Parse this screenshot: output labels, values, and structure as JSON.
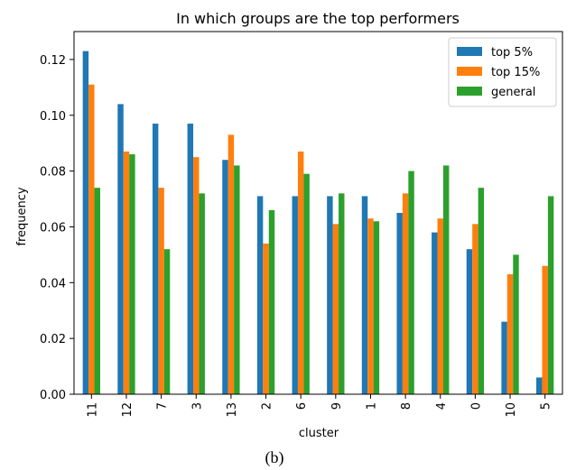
{
  "chart_data": {
    "type": "bar",
    "title": "In which groups are the top performers",
    "xlabel": "cluster",
    "ylabel": "frequency",
    "categories": [
      "11",
      "12",
      "7",
      "3",
      "13",
      "2",
      "6",
      "9",
      "1",
      "8",
      "4",
      "0",
      "10",
      "5"
    ],
    "series": [
      {
        "name": "top 5%",
        "color": "#1f77b4",
        "values": [
          0.123,
          0.104,
          0.097,
          0.097,
          0.084,
          0.071,
          0.071,
          0.071,
          0.071,
          0.065,
          0.058,
          0.052,
          0.026,
          0.006
        ]
      },
      {
        "name": "top 15%",
        "color": "#ff7f0e",
        "values": [
          0.111,
          0.087,
          0.074,
          0.085,
          0.093,
          0.054,
          0.087,
          0.061,
          0.063,
          0.072,
          0.063,
          0.061,
          0.043,
          0.046
        ]
      },
      {
        "name": "general",
        "color": "#2ca02c",
        "values": [
          0.074,
          0.086,
          0.052,
          0.072,
          0.082,
          0.066,
          0.079,
          0.072,
          0.062,
          0.08,
          0.082,
          0.074,
          0.05,
          0.071
        ]
      }
    ],
    "ylim": [
      0,
      0.13
    ],
    "yticks": [
      "0.00",
      "0.02",
      "0.04",
      "0.06",
      "0.08",
      "0.10",
      "0.12"
    ],
    "legend_position": "top-right",
    "grid": false
  },
  "caption": "(b)"
}
